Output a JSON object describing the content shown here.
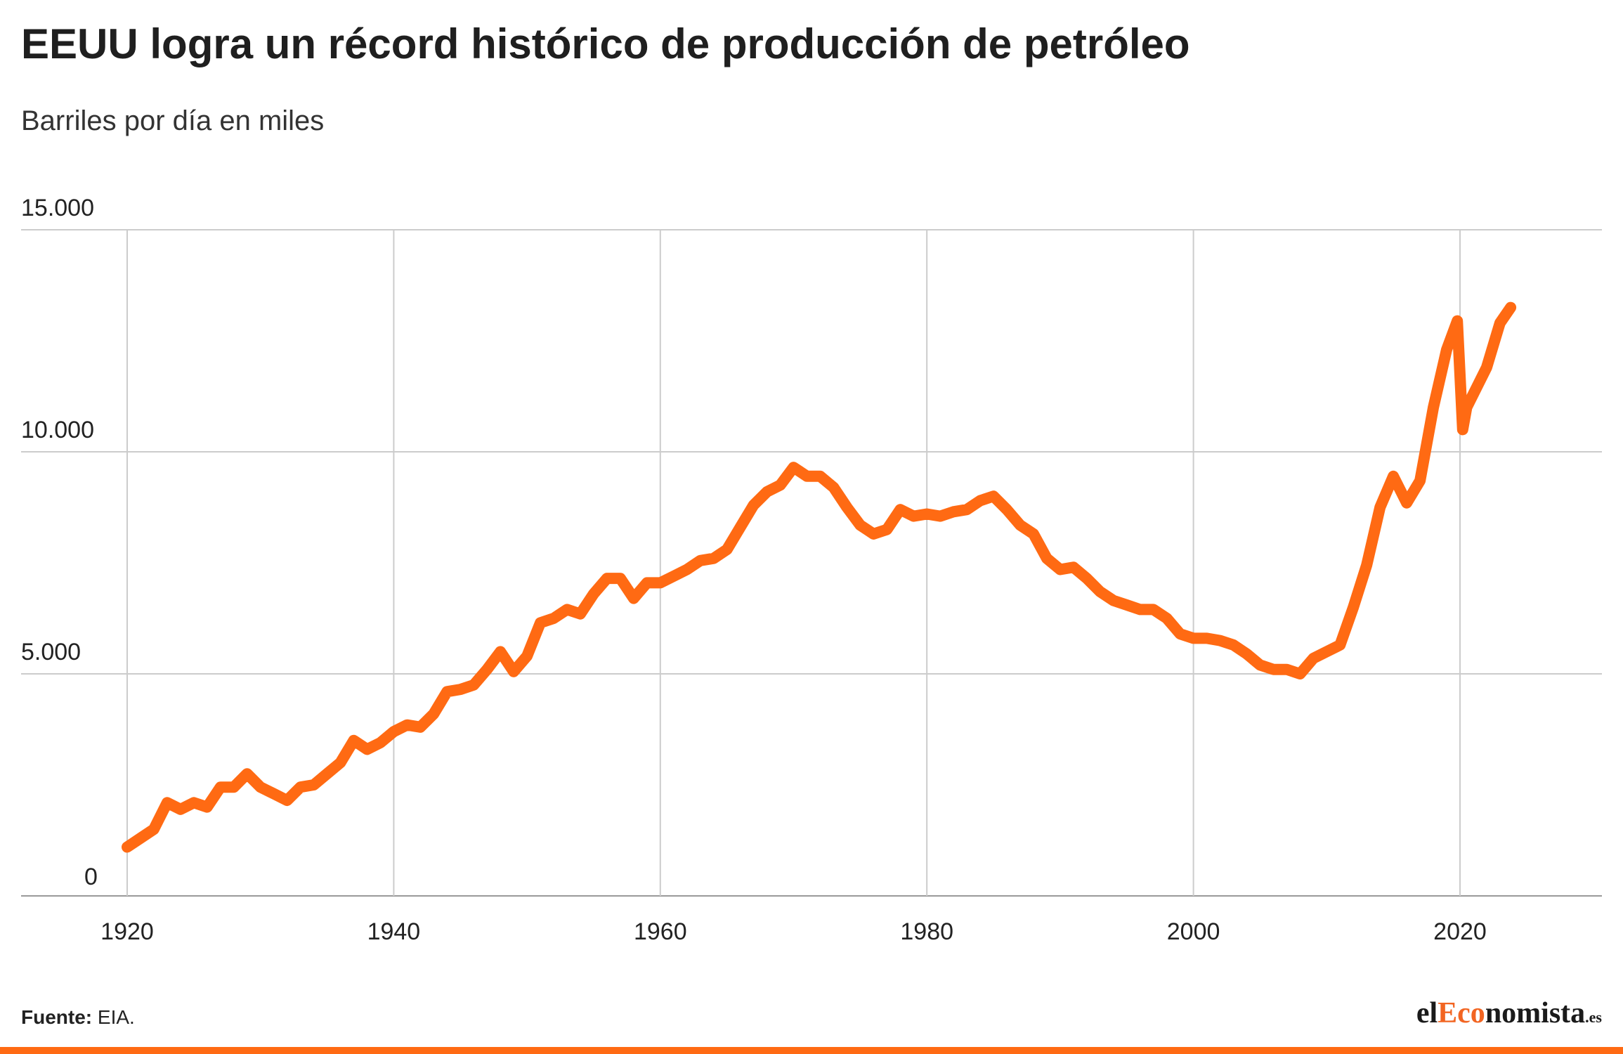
{
  "header": {
    "title": "EEUU logra un récord histórico de producción de petróleo",
    "subtitle": "Barriles por día en miles"
  },
  "footer": {
    "source_label": "Fuente:",
    "source_value": "EIA.",
    "logo_part1": "el",
    "logo_part2": "Eco",
    "logo_part3": "nomista",
    "logo_part4": ".es"
  },
  "colors": {
    "line": "#ff6a13",
    "grid": "#cccccc",
    "bar": "#ff6a13"
  },
  "chart_data": {
    "type": "line",
    "title": "EEUU logra un récord histórico de producción de petróleo",
    "subtitle": "Barriles por día en miles",
    "xlabel": "",
    "ylabel": "",
    "xlim": [
      1920,
      2030
    ],
    "ylim": [
      0,
      15000
    ],
    "x_ticks": [
      1920,
      1940,
      1960,
      1980,
      2000,
      2020
    ],
    "y_ticks": [
      0,
      5000,
      10000,
      15000
    ],
    "y_tick_labels": [
      "0",
      "5.000",
      "10.000",
      "15.000"
    ],
    "grid": true,
    "legend": "none",
    "series": [
      {
        "values": [
          [
            1920,
            1100
          ],
          [
            1921,
            1300
          ],
          [
            1922,
            1500
          ],
          [
            1923,
            2100
          ],
          [
            1924,
            1950
          ],
          [
            1925,
            2100
          ],
          [
            1926,
            2000
          ],
          [
            1927,
            2450
          ],
          [
            1928,
            2450
          ],
          [
            1929,
            2750
          ],
          [
            1930,
            2450
          ],
          [
            1931,
            2300
          ],
          [
            1932,
            2150
          ],
          [
            1933,
            2450
          ],
          [
            1934,
            2500
          ],
          [
            1935,
            2750
          ],
          [
            1936,
            3000
          ],
          [
            1937,
            3500
          ],
          [
            1938,
            3300
          ],
          [
            1939,
            3450
          ],
          [
            1940,
            3700
          ],
          [
            1941,
            3850
          ],
          [
            1942,
            3800
          ],
          [
            1943,
            4100
          ],
          [
            1944,
            4600
          ],
          [
            1945,
            4650
          ],
          [
            1946,
            4750
          ],
          [
            1947,
            5100
          ],
          [
            1948,
            5500
          ],
          [
            1949,
            5050
          ],
          [
            1950,
            5400
          ],
          [
            1951,
            6150
          ],
          [
            1952,
            6250
          ],
          [
            1953,
            6450
          ],
          [
            1954,
            6350
          ],
          [
            1955,
            6800
          ],
          [
            1956,
            7150
          ],
          [
            1957,
            7150
          ],
          [
            1958,
            6700
          ],
          [
            1959,
            7050
          ],
          [
            1960,
            7050
          ],
          [
            1961,
            7200
          ],
          [
            1962,
            7350
          ],
          [
            1963,
            7550
          ],
          [
            1964,
            7600
          ],
          [
            1965,
            7800
          ],
          [
            1966,
            8300
          ],
          [
            1967,
            8800
          ],
          [
            1968,
            9100
          ],
          [
            1969,
            9250
          ],
          [
            1970,
            9650
          ],
          [
            1971,
            9450
          ],
          [
            1972,
            9450
          ],
          [
            1973,
            9200
          ],
          [
            1974,
            8750
          ],
          [
            1975,
            8350
          ],
          [
            1976,
            8150
          ],
          [
            1977,
            8250
          ],
          [
            1978,
            8700
          ],
          [
            1979,
            8550
          ],
          [
            1980,
            8600
          ],
          [
            1981,
            8550
          ],
          [
            1982,
            8650
          ],
          [
            1983,
            8700
          ],
          [
            1984,
            8900
          ],
          [
            1985,
            9000
          ],
          [
            1986,
            8700
          ],
          [
            1987,
            8350
          ],
          [
            1988,
            8150
          ],
          [
            1989,
            7600
          ],
          [
            1990,
            7350
          ],
          [
            1991,
            7400
          ],
          [
            1992,
            7150
          ],
          [
            1993,
            6850
          ],
          [
            1994,
            6650
          ],
          [
            1995,
            6550
          ],
          [
            1996,
            6450
          ],
          [
            1997,
            6450
          ],
          [
            1998,
            6250
          ],
          [
            1999,
            5900
          ],
          [
            2000,
            5800
          ],
          [
            2001,
            5800
          ],
          [
            2002,
            5750
          ],
          [
            2003,
            5650
          ],
          [
            2004,
            5450
          ],
          [
            2005,
            5200
          ],
          [
            2006,
            5100
          ],
          [
            2007,
            5100
          ],
          [
            2008,
            5000
          ],
          [
            2009,
            5350
          ],
          [
            2010,
            5500
          ],
          [
            2011,
            5650
          ],
          [
            2012,
            6500
          ],
          [
            2013,
            7450
          ],
          [
            2014,
            8750
          ],
          [
            2015,
            9450
          ],
          [
            2016,
            8850
          ],
          [
            2017,
            9350
          ],
          [
            2018,
            11000
          ],
          [
            2019,
            12300
          ],
          [
            2019.8,
            12950
          ],
          [
            2020.2,
            10500
          ],
          [
            2020.5,
            11000
          ],
          [
            2021,
            11300
          ],
          [
            2022,
            11900
          ],
          [
            2023,
            12900
          ],
          [
            2023.8,
            13250
          ]
        ]
      }
    ]
  }
}
